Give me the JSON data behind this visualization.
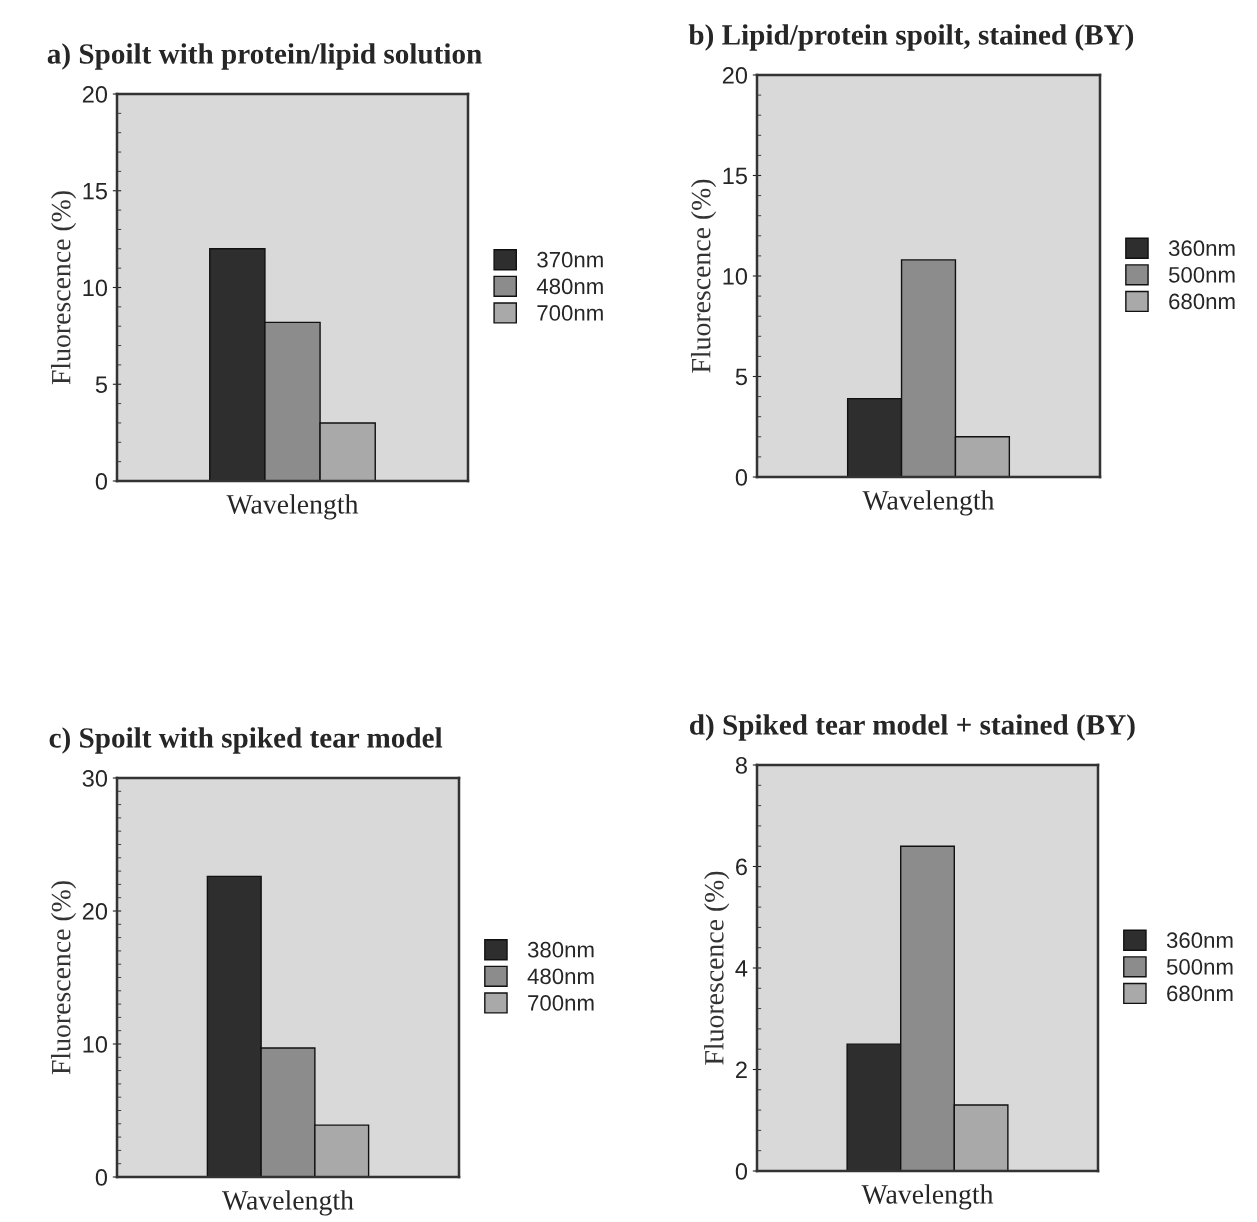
{
  "chart_data": [
    {
      "type": "bar",
      "title": "a) Spoilt with protein/lipid solution",
      "xlabel": "Wavelength",
      "ylabel": "Fluorescence (%)",
      "categories": [
        null
      ],
      "ylim": [
        0,
        20
      ],
      "yticks": [
        0,
        5,
        10,
        15,
        20
      ],
      "legend": "right",
      "grid": false,
      "series": [
        {
          "name": "370nm",
          "color": "#2e2e2e",
          "values": [
            12
          ]
        },
        {
          "name": "480nm",
          "color": "#8c8c8c",
          "values": [
            8.2
          ]
        },
        {
          "name": "700nm",
          "color": "#a9a9a9",
          "values": [
            3.0
          ]
        }
      ]
    },
    {
      "type": "bar",
      "title": "b) Lipid/protein spoilt, stained (BY)",
      "xlabel": "Wavelength",
      "ylabel": "Fluorescence (%)",
      "categories": [
        null
      ],
      "ylim": [
        0,
        20
      ],
      "yticks": [
        0,
        5,
        10,
        15,
        20
      ],
      "legend": "right",
      "grid": false,
      "series": [
        {
          "name": "360nm",
          "color": "#2e2e2e",
          "values": [
            3.9
          ]
        },
        {
          "name": "500nm",
          "color": "#8c8c8c",
          "values": [
            10.8
          ]
        },
        {
          "name": "680nm",
          "color": "#a9a9a9",
          "values": [
            2.0
          ]
        }
      ]
    },
    {
      "type": "bar",
      "title": "c) Spoilt with spiked tear model",
      "xlabel": "Wavelength",
      "ylabel": "Fluorescence (%)",
      "categories": [
        null
      ],
      "ylim": [
        0,
        30
      ],
      "yticks": [
        0,
        10,
        20,
        30
      ],
      "legend": "right",
      "grid": false,
      "series": [
        {
          "name": "380nm",
          "color": "#2e2e2e",
          "values": [
            22.6
          ]
        },
        {
          "name": "480nm",
          "color": "#8c8c8c",
          "values": [
            9.7
          ]
        },
        {
          "name": "700nm",
          "color": "#a9a9a9",
          "values": [
            3.9
          ]
        }
      ]
    },
    {
      "type": "bar",
      "title": "d) Spiked tear model + stained (BY)",
      "xlabel": "Wavelength",
      "ylabel": "Fluorescence (%)",
      "categories": [
        null
      ],
      "ylim": [
        0,
        8
      ],
      "yticks": [
        0,
        2,
        4,
        6,
        8
      ],
      "legend": "right",
      "grid": false,
      "series": [
        {
          "name": "360nm",
          "color": "#2e2e2e",
          "values": [
            2.5
          ]
        },
        {
          "name": "500nm",
          "color": "#8c8c8c",
          "values": [
            6.4
          ]
        },
        {
          "name": "680nm",
          "color": "#a9a9a9",
          "values": [
            1.3
          ]
        }
      ]
    }
  ]
}
